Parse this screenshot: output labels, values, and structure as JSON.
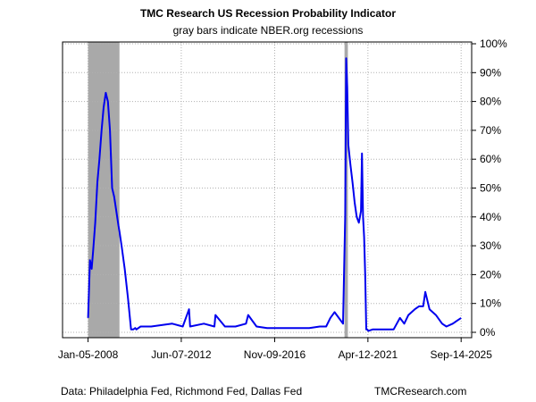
{
  "chart_data": {
    "type": "line",
    "title": "TMC Research US Recession Probability Indicator",
    "subtitle": "gray bars indicate NBER.org recessions",
    "ylim": [
      0,
      100
    ],
    "y_ticks": [
      0,
      10,
      20,
      30,
      40,
      50,
      60,
      70,
      80,
      90,
      100
    ],
    "y_tick_labels": [
      "0%",
      "10%",
      "20%",
      "30%",
      "40%",
      "50%",
      "60%",
      "70%",
      "80%",
      "90%",
      "100%"
    ],
    "x_ticks": [
      {
        "value": 2008.01,
        "label": "Jan-05-2008"
      },
      {
        "value": 2012.43,
        "label": "Jun-07-2012"
      },
      {
        "value": 2016.86,
        "label": "Nov-09-2016"
      },
      {
        "value": 2021.28,
        "label": "Apr-12-2021"
      },
      {
        "value": 2025.7,
        "label": "Sep-14-2025"
      }
    ],
    "xlim": [
      2006.8,
      2026.2
    ],
    "grid": true,
    "recessions": [
      {
        "start": 2008.01,
        "end": 2009.5
      },
      {
        "start": 2020.17,
        "end": 2020.33
      }
    ],
    "series": [
      {
        "color": "#0000ee",
        "x": [
          2008.01,
          2008.1,
          2008.18,
          2008.25,
          2008.35,
          2008.45,
          2008.55,
          2008.65,
          2008.75,
          2008.85,
          2008.95,
          2009.05,
          2009.15,
          2009.25,
          2009.35,
          2009.45,
          2009.5,
          2009.6,
          2009.75,
          2009.9,
          2010.05,
          2010.15,
          2010.25,
          2010.3,
          2010.5,
          2011.0,
          2011.5,
          2012.0,
          2012.5,
          2012.8,
          2012.85,
          2013.5,
          2014.0,
          2014.05,
          2014.5,
          2015.0,
          2015.5,
          2015.6,
          2016.0,
          2016.5,
          2017.0,
          2017.5,
          2018.0,
          2018.5,
          2019.0,
          2019.3,
          2019.5,
          2019.7,
          2019.9,
          2020.1,
          2020.2,
          2020.25,
          2020.3,
          2020.35,
          2020.45,
          2020.55,
          2020.65,
          2020.75,
          2020.85,
          2020.95,
          2021.0,
          2021.05,
          2021.1,
          2021.15,
          2021.2,
          2021.25,
          2021.3,
          2021.5,
          2022.0,
          2022.3,
          2022.5,
          2022.8,
          2023.0,
          2023.2,
          2023.5,
          2023.7,
          2023.9,
          2024.0,
          2024.2,
          2024.5,
          2024.8,
          2025.0,
          2025.3,
          2025.5,
          2025.7
        ],
        "y": [
          5,
          25,
          22,
          28,
          38,
          52,
          60,
          70,
          78,
          83,
          80,
          70,
          50,
          47,
          42,
          37,
          35,
          30,
          22,
          12,
          1,
          1,
          1.5,
          1,
          2,
          2,
          2.5,
          3,
          2,
          8,
          2,
          3,
          2,
          6,
          2,
          2,
          3,
          6,
          2,
          1.5,
          1.5,
          1.5,
          1.5,
          1.5,
          2,
          2,
          5,
          7,
          5,
          3,
          40,
          95,
          85,
          65,
          58,
          52,
          45,
          40,
          38,
          42,
          62,
          40,
          33,
          20,
          1,
          1,
          0.5,
          1,
          1,
          1,
          1,
          5,
          3,
          6,
          8,
          9,
          9,
          14,
          8,
          6,
          3,
          2,
          3,
          4,
          5
        ]
      }
    ],
    "source_note": "Data: Philadelphia Fed, Richmond Fed, Dallas Fed",
    "brand": "TMCResearch.com"
  }
}
